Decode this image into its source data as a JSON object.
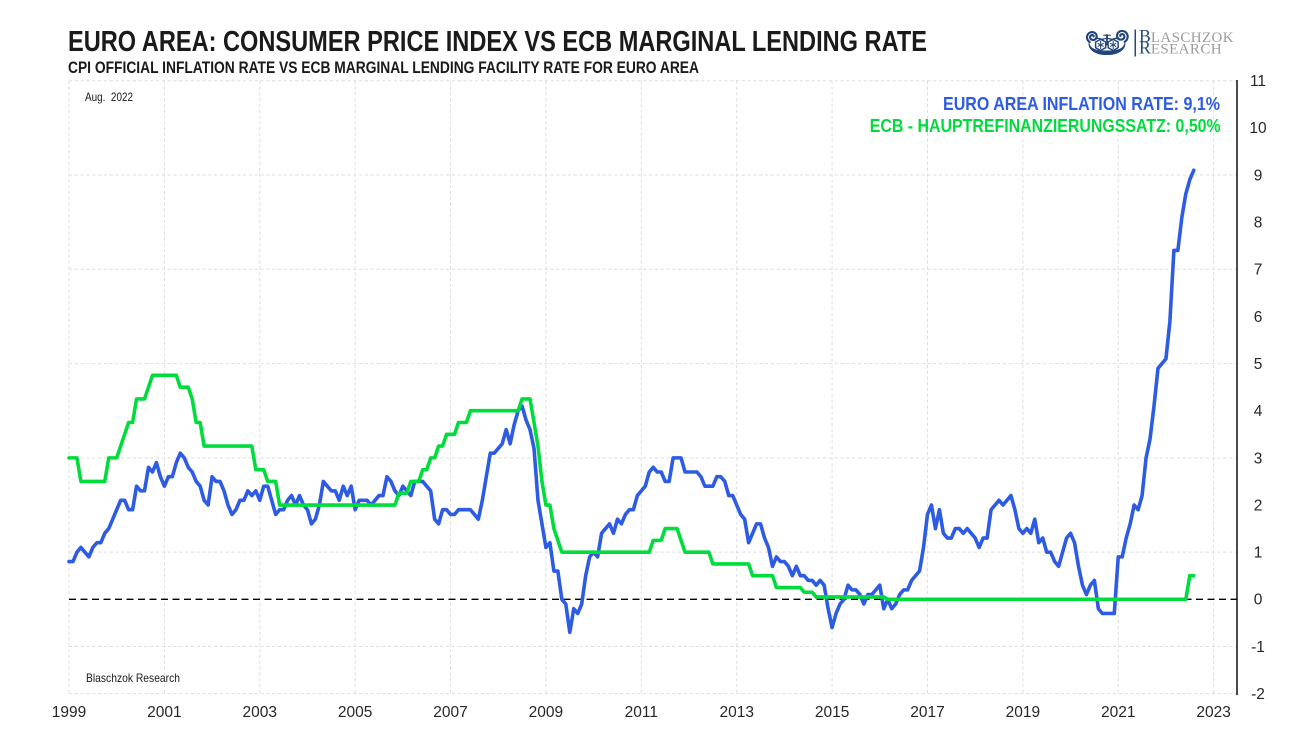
{
  "header": {
    "title": "EURO AREA: CONSUMER PRICE INDEX VS ECB MARGINAL LENDING RATE",
    "subtitle": "CPI OFFICIAL INFLATION RATE VS ECB MARGINAL LENDING FACILITY RATE FOR EURO AREA"
  },
  "logo": {
    "name": "Blaschzok Research",
    "line1_initial": "B",
    "line1_rest": "LASCHZOK",
    "line2_initial": "R",
    "line2_rest": "ESEARCH",
    "navy": "#26497E",
    "gray": "#9B9B9B"
  },
  "annotations": {
    "date_label": "Aug.  2022",
    "watermark": "Blaschzok Research"
  },
  "legend": {
    "items": [
      {
        "label": "EURO AREA INFLATION RATE: 9,1%",
        "color": "#2D5BE3"
      },
      {
        "label": "ECB - HAUPTREFINANZIERUNGSSATZ: 0,50%",
        "color": "#00DC3C"
      }
    ],
    "position": "top-right"
  },
  "chart_data": {
    "type": "line",
    "title": "EURO AREA: CONSUMER PRICE INDEX VS ECB MARGINAL LENDING RATE",
    "xlabel": "",
    "ylabel": "",
    "x_axis": {
      "min": 1999.0,
      "max": 2023.49,
      "tick_years": [
        1999,
        2001,
        2003,
        2005,
        2007,
        2009,
        2011,
        2013,
        2015,
        2017,
        2019,
        2021,
        2023
      ]
    },
    "y_axis": {
      "min": -2,
      "max": 11,
      "side": "right",
      "tick_values": [
        -2,
        -1,
        0,
        1,
        2,
        3,
        4,
        5,
        6,
        7,
        8,
        9,
        10,
        11
      ],
      "gridline_values": [
        -2,
        -1,
        1,
        3,
        5,
        7,
        9,
        11
      ],
      "zero_line": 0
    },
    "grid": true,
    "legend_position": "top-right",
    "series": [
      {
        "name": "EURO AREA INFLATION RATE",
        "last_value_label": "9,1%",
        "color": "#2D5BE3",
        "frequency": "monthly",
        "start_year": 1999,
        "start_month": 1,
        "values": [
          0.8,
          0.8,
          1.0,
          1.1,
          1.0,
          0.9,
          1.1,
          1.2,
          1.2,
          1.4,
          1.5,
          1.7,
          1.9,
          2.1,
          2.1,
          1.9,
          1.9,
          2.4,
          2.3,
          2.3,
          2.8,
          2.7,
          2.9,
          2.6,
          2.4,
          2.6,
          2.6,
          2.9,
          3.1,
          3.0,
          2.8,
          2.7,
          2.5,
          2.4,
          2.1,
          2.0,
          2.6,
          2.5,
          2.5,
          2.3,
          2.0,
          1.8,
          1.9,
          2.1,
          2.1,
          2.3,
          2.2,
          2.3,
          2.1,
          2.4,
          2.4,
          2.1,
          1.8,
          1.9,
          1.9,
          2.1,
          2.2,
          2.0,
          2.2,
          2.0,
          1.9,
          1.6,
          1.7,
          2.0,
          2.5,
          2.4,
          2.3,
          2.3,
          2.1,
          2.4,
          2.2,
          2.4,
          1.9,
          2.1,
          2.1,
          2.1,
          2.0,
          2.1,
          2.2,
          2.2,
          2.6,
          2.5,
          2.3,
          2.2,
          2.4,
          2.3,
          2.2,
          2.5,
          2.5,
          2.5,
          2.4,
          2.3,
          1.7,
          1.6,
          1.9,
          1.9,
          1.8,
          1.8,
          1.9,
          1.9,
          1.9,
          1.9,
          1.8,
          1.7,
          2.1,
          2.6,
          3.1,
          3.1,
          3.2,
          3.3,
          3.6,
          3.3,
          3.7,
          4.0,
          4.1,
          3.8,
          3.6,
          3.2,
          2.1,
          1.6,
          1.1,
          1.2,
          0.6,
          0.6,
          0.0,
          -0.1,
          -0.7,
          -0.2,
          -0.3,
          -0.1,
          0.5,
          0.9,
          1.0,
          0.9,
          1.4,
          1.5,
          1.6,
          1.4,
          1.7,
          1.6,
          1.8,
          1.9,
          1.9,
          2.2,
          2.3,
          2.4,
          2.7,
          2.8,
          2.7,
          2.7,
          2.5,
          2.5,
          3.0,
          3.0,
          3.0,
          2.7,
          2.7,
          2.7,
          2.7,
          2.6,
          2.4,
          2.4,
          2.4,
          2.6,
          2.6,
          2.5,
          2.2,
          2.2,
          2.0,
          1.8,
          1.7,
          1.2,
          1.4,
          1.6,
          1.6,
          1.3,
          1.1,
          0.7,
          0.9,
          0.8,
          0.8,
          0.7,
          0.5,
          0.7,
          0.5,
          0.5,
          0.4,
          0.4,
          0.3,
          0.4,
          0.3,
          -0.2,
          -0.6,
          -0.3,
          -0.1,
          0.0,
          0.3,
          0.2,
          0.2,
          0.1,
          -0.1,
          0.1,
          0.1,
          0.2,
          0.3,
          -0.2,
          0.0,
          -0.2,
          -0.1,
          0.1,
          0.2,
          0.2,
          0.4,
          0.5,
          0.6,
          1.1,
          1.8,
          2.0,
          1.5,
          1.9,
          1.4,
          1.3,
          1.3,
          1.5,
          1.5,
          1.4,
          1.5,
          1.4,
          1.3,
          1.1,
          1.3,
          1.3,
          1.9,
          2.0,
          2.1,
          2.0,
          2.1,
          2.2,
          1.9,
          1.5,
          1.4,
          1.5,
          1.4,
          1.7,
          1.2,
          1.3,
          1.0,
          1.0,
          0.8,
          0.7,
          1.0,
          1.3,
          1.4,
          1.2,
          0.7,
          0.3,
          0.1,
          0.3,
          0.4,
          -0.2,
          -0.3,
          -0.3,
          -0.3,
          -0.3,
          0.9,
          0.9,
          1.3,
          1.6,
          2.0,
          1.9,
          2.2,
          3.0,
          3.4,
          4.1,
          4.9,
          5.0,
          5.1,
          5.9,
          7.4,
          7.4,
          8.1,
          8.6,
          8.9,
          9.1
        ]
      },
      {
        "name": "ECB - HAUPTREFINANZIERUNGSSATZ",
        "last_value_label": "0,50%",
        "color": "#00DC3C",
        "frequency": "monthly",
        "start_year": 1999,
        "start_month": 1,
        "values": [
          3.0,
          3.0,
          3.0,
          2.5,
          2.5,
          2.5,
          2.5,
          2.5,
          2.5,
          2.5,
          3.0,
          3.0,
          3.0,
          3.25,
          3.5,
          3.75,
          3.75,
          4.25,
          4.25,
          4.25,
          4.5,
          4.75,
          4.75,
          4.75,
          4.75,
          4.75,
          4.75,
          4.75,
          4.5,
          4.5,
          4.5,
          4.25,
          3.75,
          3.75,
          3.25,
          3.25,
          3.25,
          3.25,
          3.25,
          3.25,
          3.25,
          3.25,
          3.25,
          3.25,
          3.25,
          3.25,
          3.25,
          2.75,
          2.75,
          2.75,
          2.5,
          2.5,
          2.5,
          2.0,
          2.0,
          2.0,
          2.0,
          2.0,
          2.0,
          2.0,
          2.0,
          2.0,
          2.0,
          2.0,
          2.0,
          2.0,
          2.0,
          2.0,
          2.0,
          2.0,
          2.0,
          2.0,
          2.0,
          2.0,
          2.0,
          2.0,
          2.0,
          2.0,
          2.0,
          2.0,
          2.0,
          2.0,
          2.0,
          2.25,
          2.25,
          2.25,
          2.5,
          2.5,
          2.5,
          2.75,
          2.75,
          3.0,
          3.0,
          3.25,
          3.25,
          3.5,
          3.5,
          3.5,
          3.75,
          3.75,
          3.75,
          4.0,
          4.0,
          4.0,
          4.0,
          4.0,
          4.0,
          4.0,
          4.0,
          4.0,
          4.0,
          4.0,
          4.0,
          4.0,
          4.25,
          4.25,
          4.25,
          3.75,
          3.25,
          2.5,
          2.0,
          2.0,
          1.5,
          1.25,
          1.0,
          1.0,
          1.0,
          1.0,
          1.0,
          1.0,
          1.0,
          1.0,
          1.0,
          1.0,
          1.0,
          1.0,
          1.0,
          1.0,
          1.0,
          1.0,
          1.0,
          1.0,
          1.0,
          1.0,
          1.0,
          1.0,
          1.0,
          1.25,
          1.25,
          1.25,
          1.5,
          1.5,
          1.5,
          1.5,
          1.25,
          1.0,
          1.0,
          1.0,
          1.0,
          1.0,
          1.0,
          1.0,
          0.75,
          0.75,
          0.75,
          0.75,
          0.75,
          0.75,
          0.75,
          0.75,
          0.75,
          0.75,
          0.5,
          0.5,
          0.5,
          0.5,
          0.5,
          0.5,
          0.25,
          0.25,
          0.25,
          0.25,
          0.25,
          0.25,
          0.25,
          0.15,
          0.15,
          0.15,
          0.05,
          0.05,
          0.05,
          0.05,
          0.05,
          0.05,
          0.05,
          0.05,
          0.05,
          0.05,
          0.05,
          0.05,
          0.05,
          0.05,
          0.05,
          0.05,
          0.05,
          0.05,
          0.0,
          0.0,
          0.0,
          0.0,
          0.0,
          0.0,
          0.0,
          0.0,
          0.0,
          0.0,
          0.0,
          0.0,
          0.0,
          0.0,
          0.0,
          0.0,
          0.0,
          0.0,
          0.0,
          0.0,
          0.0,
          0.0,
          0.0,
          0.0,
          0.0,
          0.0,
          0.0,
          0.0,
          0.0,
          0.0,
          0.0,
          0.0,
          0.0,
          0.0,
          0.0,
          0.0,
          0.0,
          0.0,
          0.0,
          0.0,
          0.0,
          0.0,
          0.0,
          0.0,
          0.0,
          0.0,
          0.0,
          0.0,
          0.0,
          0.0,
          0.0,
          0.0,
          0.0,
          0.0,
          0.0,
          0.0,
          0.0,
          0.0,
          0.0,
          0.0,
          0.0,
          0.0,
          0.0,
          0.0,
          0.0,
          0.0,
          0.0,
          0.0,
          0.0,
          0.0,
          0.0,
          0.0,
          0.0,
          0.0,
          0.0,
          0.0,
          0.5,
          0.5
        ]
      }
    ]
  },
  "colors": {
    "background": "#FFFFFF",
    "gridline": "#DEDEDE",
    "zero_line": "#000000",
    "axis_line": "#000000",
    "tick_text": "#262626",
    "title_text": "#1A1A1A"
  }
}
